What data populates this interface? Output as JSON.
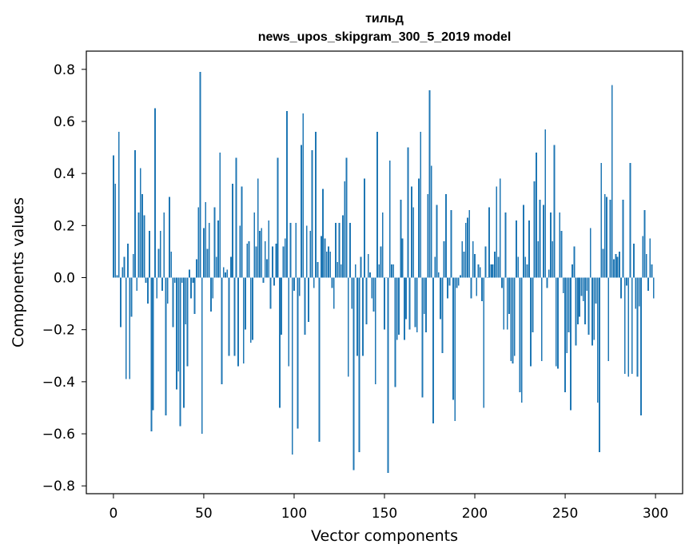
{
  "chart_data": {
    "type": "bar",
    "title": "тильд",
    "subtitle": "news_upos_skipgram_300_5_2019 model",
    "xlabel": "Vector components",
    "ylabel": "Components values",
    "xlim": [
      -15,
      315
    ],
    "ylim": [
      -0.83,
      0.87
    ],
    "xticks": [
      0,
      50,
      100,
      150,
      200,
      250,
      300
    ],
    "xtick_labels": [
      "0",
      "50",
      "100",
      "150",
      "200",
      "250",
      "300"
    ],
    "yticks": [
      0.8,
      0.6,
      0.4,
      0.2,
      0.0,
      -0.2,
      -0.4,
      -0.6,
      -0.8
    ],
    "ytick_labels": [
      "0.8",
      "0.6",
      "0.4",
      "0.2",
      "0.0",
      "−0.2",
      "−0.4",
      "−0.6",
      "−0.8"
    ],
    "grid": false,
    "bar_color": "#1f77b4",
    "x": "0..299 (one bar per vector component index)",
    "values": [
      0.47,
      0.36,
      0.01,
      0.56,
      -0.19,
      0.04,
      0.08,
      -0.39,
      0.13,
      -0.39,
      -0.15,
      0.09,
      0.49,
      -0.05,
      0.25,
      0.42,
      0.32,
      0.24,
      -0.02,
      -0.1,
      0.18,
      -0.59,
      -0.51,
      0.65,
      -0.08,
      0.11,
      0.18,
      -0.05,
      0.25,
      -0.53,
      -0.1,
      0.31,
      0.1,
      -0.19,
      -0.02,
      -0.43,
      -0.36,
      -0.57,
      -0.02,
      -0.5,
      -0.18,
      -0.34,
      0.03,
      -0.08,
      -0.02,
      -0.14,
      0.07,
      0.27,
      0.79,
      -0.6,
      0.19,
      0.29,
      0.11,
      0.21,
      -0.13,
      -0.08,
      0.27,
      0.08,
      0.22,
      0.48,
      -0.41,
      0.04,
      0.02,
      0.03,
      -0.3,
      0.08,
      0.36,
      -0.3,
      0.46,
      -0.34,
      0.2,
      0.35,
      -0.33,
      -0.2,
      0.13,
      0.14,
      -0.25,
      -0.24,
      0.25,
      0.12,
      0.38,
      0.18,
      0.19,
      -0.02,
      0.14,
      0.07,
      0.22,
      -0.12,
      0.12,
      -0.03,
      0.13,
      0.46,
      -0.5,
      -0.22,
      0.12,
      0.15,
      0.64,
      -0.34,
      0.21,
      -0.68,
      -0.05,
      0.21,
      -0.58,
      -0.07,
      0.51,
      0.63,
      -0.22,
      0.2,
      -0.17,
      0.18,
      0.49,
      -0.04,
      0.56,
      0.06,
      -0.63,
      0.16,
      0.34,
      0.15,
      0.1,
      0.12,
      0.1,
      -0.04,
      -0.12,
      0.21,
      0.06,
      0.21,
      0.05,
      0.24,
      0.37,
      0.46,
      -0.38,
      0.21,
      -0.12,
      -0.74,
      0.05,
      -0.3,
      -0.67,
      0.08,
      -0.3,
      0.38,
      -0.18,
      0.09,
      0.02,
      -0.08,
      -0.13,
      -0.41,
      0.56,
      0.05,
      0.12,
      0.25,
      -0.2,
      0.0,
      -0.75,
      0.45,
      0.05,
      0.05,
      -0.42,
      -0.24,
      -0.22,
      0.3,
      0.15,
      -0.24,
      -0.16,
      0.5,
      -0.2,
      0.35,
      0.27,
      -0.19,
      -0.21,
      0.38,
      0.56,
      -0.46,
      -0.14,
      -0.21,
      0.32,
      0.72,
      0.43,
      -0.56,
      0.08,
      0.28,
      0.02,
      -0.16,
      -0.29,
      0.14,
      0.32,
      -0.08,
      -0.03,
      0.26,
      -0.47,
      -0.55,
      -0.04,
      -0.03,
      0.01,
      0.14,
      0.1,
      0.21,
      0.23,
      0.26,
      -0.08,
      0.14,
      0.09,
      -0.07,
      0.05,
      0.04,
      -0.09,
      -0.5,
      0.12,
      0.0,
      0.27,
      0.05,
      0.05,
      0.1,
      0.35,
      0.08,
      0.38,
      -0.04,
      -0.2,
      0.25,
      -0.2,
      -0.14,
      -0.32,
      -0.33,
      -0.3,
      0.22,
      0.08,
      -0.44,
      -0.48,
      0.28,
      0.08,
      0.05,
      0.22,
      -0.34,
      -0.21,
      0.37,
      0.48,
      0.14,
      0.3,
      -0.32,
      0.28,
      0.57,
      -0.04,
      0.03,
      0.25,
      0.14,
      0.51,
      -0.34,
      -0.35,
      0.25,
      0.18,
      -0.06,
      -0.44,
      -0.29,
      -0.21,
      -0.51,
      0.05,
      0.12,
      -0.26,
      -0.18,
      -0.15,
      -0.07,
      -0.09,
      -0.18,
      -0.05,
      -0.22,
      0.19,
      -0.26,
      -0.24,
      -0.1,
      -0.48,
      -0.67,
      0.44,
      0.11,
      0.32,
      0.31,
      -0.32,
      0.3,
      0.74,
      0.07,
      0.09,
      0.08,
      0.1,
      -0.08,
      0.3,
      -0.37,
      -0.03,
      -0.38,
      0.44,
      -0.37,
      0.13,
      -0.12,
      -0.38,
      -0.11,
      -0.53,
      0.16,
      0.26,
      0.09,
      -0.05,
      0.15,
      0.05,
      -0.08
    ]
  }
}
